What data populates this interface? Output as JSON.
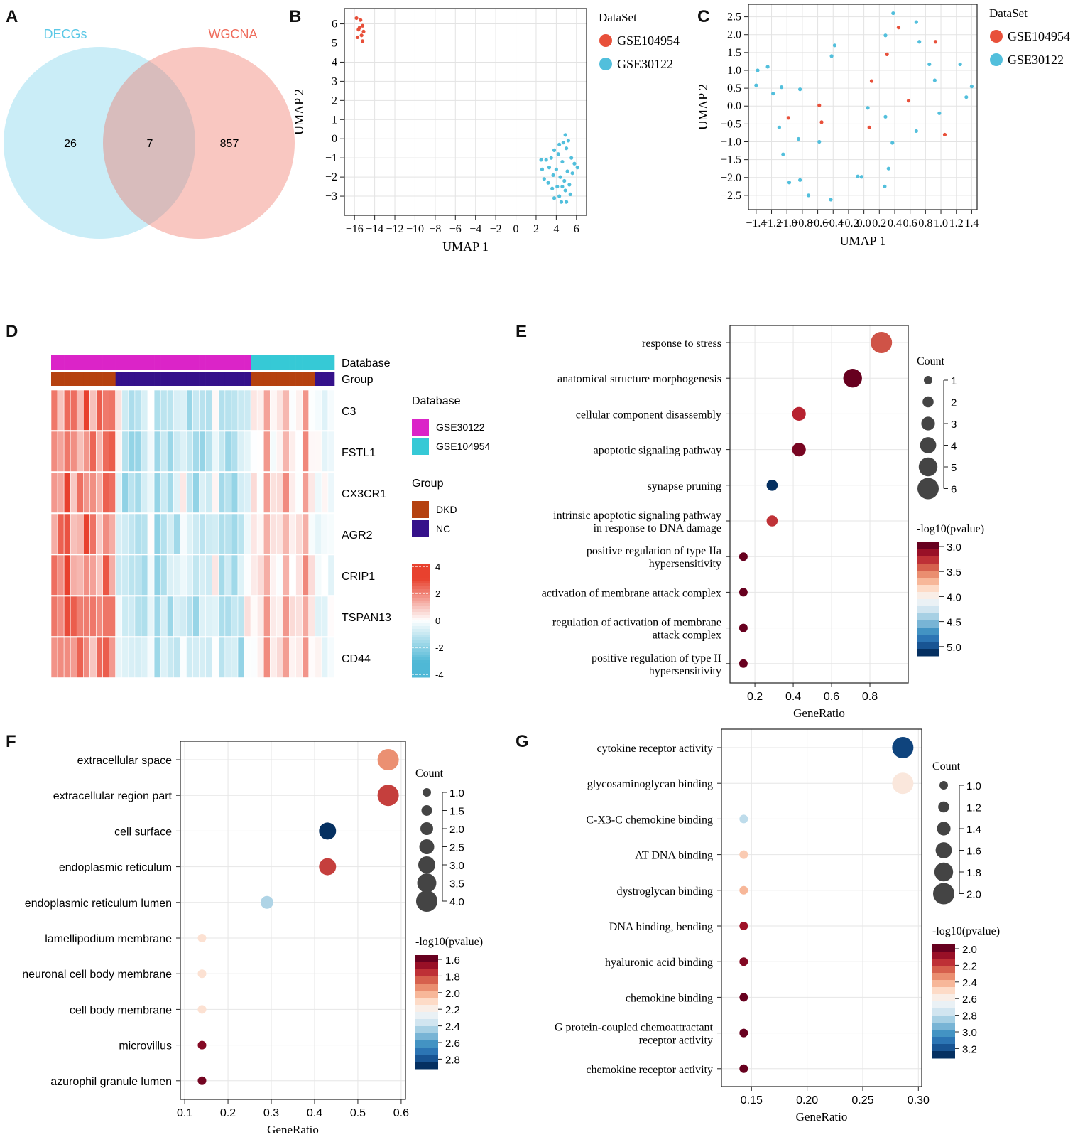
{
  "colors": {
    "decgs": "#5bc8e6",
    "wgcna": "#ef6b5b",
    "gse104954": "#e8503a",
    "gse30122": "#52bfdc",
    "dkd": "#b5410f",
    "nc": "#35118a",
    "db_gse30122": "#db24c8",
    "db_gse104954": "#36c9d6",
    "heat_low": "#4fb8d6",
    "heat_high": "#e8412e"
  },
  "panels": {
    "A": "A",
    "B": "B",
    "C": "C",
    "D": "D",
    "E": "E",
    "F": "F",
    "G": "G"
  },
  "venn": {
    "left_label": "DECGs",
    "right_label": "WGCNA",
    "left_only": "26",
    "overlap": "7",
    "right_only": "857"
  },
  "chart_data": [
    {
      "id": "B",
      "type": "scatter",
      "xlabel": "UMAP 1",
      "ylabel": "UMAP 2",
      "xlim": [
        -17,
        7
      ],
      "ylim": [
        -4,
        6.8
      ],
      "xticks": [
        -16,
        -14,
        -12,
        -10,
        -8,
        -6,
        -4,
        -2,
        0,
        2,
        4,
        6
      ],
      "xtick_labels": [
        "−16",
        "−14",
        "−12",
        "−10",
        "−8",
        "−6",
        "−4",
        "−2",
        "0",
        "2",
        "4",
        "6"
      ],
      "yticks": [
        -3,
        -2,
        -1,
        0,
        1,
        2,
        3,
        4,
        5,
        6
      ],
      "ytick_labels": [
        "−3",
        "−2",
        "−1",
        "0",
        "1",
        "2",
        "3",
        "4",
        "5",
        "6"
      ],
      "legend_title": "DataSet",
      "series": [
        {
          "name": "GSE104954",
          "points": [
            [
              -15.8,
              6.3
            ],
            [
              -15.4,
              6.2
            ],
            [
              -15.2,
              5.9
            ],
            [
              -15.6,
              5.7
            ],
            [
              -15.1,
              5.6
            ],
            [
              -15.3,
              5.4
            ],
            [
              -15.7,
              5.3
            ],
            [
              -15.2,
              5.1
            ],
            [
              -15.5,
              5.8
            ]
          ]
        },
        {
          "name": "GSE30122",
          "points": [
            [
              4.9,
              0.2
            ],
            [
              5.2,
              -0.1
            ],
            [
              4.7,
              -0.2
            ],
            [
              4.3,
              -0.3
            ],
            [
              5.0,
              -0.5
            ],
            [
              3.8,
              -0.6
            ],
            [
              4.2,
              -0.8
            ],
            [
              5.5,
              -1.0
            ],
            [
              2.5,
              -1.1
            ],
            [
              3.0,
              -1.1
            ],
            [
              3.5,
              -1.0
            ],
            [
              4.6,
              -1.2
            ],
            [
              5.8,
              -1.3
            ],
            [
              6.1,
              -1.5
            ],
            [
              2.6,
              -1.6
            ],
            [
              3.3,
              -1.5
            ],
            [
              4.0,
              -1.6
            ],
            [
              5.1,
              -1.7
            ],
            [
              3.7,
              -1.9
            ],
            [
              4.4,
              -2.0
            ],
            [
              5.6,
              -1.8
            ],
            [
              2.8,
              -2.1
            ],
            [
              3.2,
              -2.3
            ],
            [
              4.8,
              -2.2
            ],
            [
              5.3,
              -2.4
            ],
            [
              4.1,
              -2.5
            ],
            [
              3.6,
              -2.6
            ],
            [
              4.9,
              -2.7
            ],
            [
              5.4,
              -2.9
            ],
            [
              4.3,
              -3.0
            ],
            [
              3.8,
              -3.1
            ],
            [
              5.0,
              -3.3
            ],
            [
              4.5,
              -3.3
            ],
            [
              4.6,
              -2.5
            ]
          ]
        }
      ]
    },
    {
      "id": "C",
      "type": "scatter",
      "xlabel": "UMAP 1",
      "ylabel": "UMAP 2",
      "xlim": [
        -1.5,
        1.47
      ],
      "ylim": [
        -2.9,
        2.85
      ],
      "xticks": [
        -1.4,
        -1.2,
        -1.0,
        -0.8,
        -0.6,
        -0.4,
        -0.2,
        0.0,
        0.2,
        0.4,
        0.6,
        0.8,
        1.0,
        1.2,
        1.4
      ],
      "xtick_labels": [
        "−1.4",
        "−1.2",
        "−1.0",
        "−0.8",
        "−0.6",
        "−0.4",
        "−0.2",
        "0.0",
        "0.2",
        "0.4",
        "0.6",
        "0.8",
        "1.0",
        "1.2",
        "1.4"
      ],
      "yticks": [
        -2.5,
        -2.0,
        -1.5,
        -1.0,
        -0.5,
        0.0,
        0.5,
        1.0,
        1.5,
        2.0,
        2.5
      ],
      "ytick_labels": [
        "−2.5",
        "−2.0",
        "−1.5",
        "−1.0",
        "−0.5",
        "0.0",
        "0.5",
        "1.0",
        "1.5",
        "2.0",
        "2.5"
      ],
      "legend_title": "DataSet",
      "series": [
        {
          "name": "GSE104954",
          "points": [
            [
              0.45,
              2.2
            ],
            [
              0.93,
              1.8
            ],
            [
              0.3,
              1.45
            ],
            [
              0.1,
              0.7
            ],
            [
              0.58,
              0.15
            ],
            [
              -0.58,
              0.02
            ],
            [
              -0.55,
              -0.45
            ],
            [
              -0.98,
              -0.33
            ],
            [
              0.07,
              -0.6
            ],
            [
              1.05,
              -0.8
            ]
          ]
        },
        {
          "name": "GSE30122",
          "points": [
            [
              0.38,
              2.6
            ],
            [
              0.68,
              2.35
            ],
            [
              0.28,
              1.98
            ],
            [
              0.72,
              1.8
            ],
            [
              -0.38,
              1.7
            ],
            [
              -0.42,
              1.4
            ],
            [
              0.85,
              1.17
            ],
            [
              1.25,
              1.17
            ],
            [
              -1.25,
              1.1
            ],
            [
              -1.38,
              1.0
            ],
            [
              0.92,
              0.72
            ],
            [
              -1.4,
              0.58
            ],
            [
              1.4,
              0.55
            ],
            [
              -1.07,
              0.53
            ],
            [
              -0.83,
              0.47
            ],
            [
              -1.18,
              0.35
            ],
            [
              1.33,
              0.25
            ],
            [
              0.05,
              -0.05
            ],
            [
              0.28,
              -0.3
            ],
            [
              0.98,
              -0.2
            ],
            [
              -1.1,
              -0.6
            ],
            [
              0.68,
              -0.7
            ],
            [
              -0.85,
              -0.92
            ],
            [
              -0.58,
              -1.0
            ],
            [
              0.37,
              -1.03
            ],
            [
              -1.05,
              -1.35
            ],
            [
              0.32,
              -1.75
            ],
            [
              -0.08,
              -1.97
            ],
            [
              -0.03,
              -1.98
            ],
            [
              -0.83,
              -2.07
            ],
            [
              -0.97,
              -2.14
            ],
            [
              0.27,
              -2.25
            ],
            [
              -0.72,
              -2.5
            ],
            [
              -0.43,
              -2.62
            ]
          ]
        }
      ]
    },
    {
      "id": "D",
      "type": "heatmap",
      "annotation_labels": [
        "Database",
        "Group"
      ],
      "rows": [
        "C3",
        "FSTL1",
        "CX3CR1",
        "AGR2",
        "CRIP1",
        "TSPAN13",
        "CD44"
      ],
      "n_columns": 44,
      "database_legend_title": "Database",
      "database_legend": [
        "GSE30122",
        "GSE104954"
      ],
      "group_legend_title": "Group",
      "group_legend": [
        "DKD",
        "NC"
      ],
      "colorbar_ticks": [
        "4",
        "2",
        "0",
        "-2",
        "-4"
      ],
      "value_range": [
        -4,
        4
      ]
    },
    {
      "id": "E",
      "type": "scatter",
      "xlabel": "GeneRatio",
      "xlim": [
        0.07,
        1.0
      ],
      "xticks": [
        0.2,
        0.4,
        0.6,
        0.8
      ],
      "xtick_labels": [
        "0.2",
        "0.4",
        "0.6",
        "0.8"
      ],
      "terms": [
        {
          "label": [
            "response to stress"
          ],
          "ratio": 0.86,
          "count": 6,
          "p": 3.4
        },
        {
          "label": [
            "anatomical structure morphogenesis"
          ],
          "ratio": 0.71,
          "count": 5,
          "p": 3.0
        },
        {
          "label": [
            "cellular component disassembly"
          ],
          "ratio": 0.43,
          "count": 3,
          "p": 3.25
        },
        {
          "label": [
            "apoptotic signaling pathway"
          ],
          "ratio": 0.43,
          "count": 3,
          "p": 3.05
        },
        {
          "label": [
            "synapse pruning"
          ],
          "ratio": 0.29,
          "count": 2,
          "p": 5.2
        },
        {
          "label": [
            "intrinsic apoptotic signaling pathway",
            "in response to DNA damage"
          ],
          "ratio": 0.29,
          "count": 2,
          "p": 3.3
        },
        {
          "label": [
            "positive regulation of type IIa",
            "hypersensitivity"
          ],
          "ratio": 0.14,
          "count": 1,
          "p": 3.0
        },
        {
          "label": [
            "activation of membrane attack complex"
          ],
          "ratio": 0.14,
          "count": 1,
          "p": 3.0
        },
        {
          "label": [
            "regulation of activation of membrane",
            "attack complex"
          ],
          "ratio": 0.14,
          "count": 1,
          "p": 3.0
        },
        {
          "label": [
            "positive regulation of type II",
            "hypersensitivity"
          ],
          "ratio": 0.14,
          "count": 1,
          "p": 3.0
        }
      ],
      "size_legend_title": "Count",
      "size_legend": [
        1,
        2,
        3,
        4,
        5,
        6
      ],
      "size_legend_labels": [
        "1",
        "2",
        "3",
        "4",
        "5",
        "6"
      ],
      "color_legend_title": "-log10(pvalue)",
      "color_ticks": [
        "3.0",
        "3.5",
        "4.0",
        "4.5",
        "5.0"
      ],
      "color_range": [
        3.0,
        5.2
      ]
    },
    {
      "id": "F",
      "type": "scatter",
      "xlabel": "GeneRatio",
      "xlim": [
        0.09,
        0.61
      ],
      "xticks": [
        0.1,
        0.2,
        0.3,
        0.4,
        0.5,
        0.6
      ],
      "xtick_labels": [
        "0.1",
        "0.2",
        "0.3",
        "0.4",
        "0.5",
        "0.6"
      ],
      "terms": [
        {
          "label": [
            "extracellular space"
          ],
          "ratio": 0.57,
          "count": 4,
          "p": 1.85
        },
        {
          "label": [
            "extracellular region part"
          ],
          "ratio": 0.57,
          "count": 4,
          "p": 1.7
        },
        {
          "label": [
            "cell surface"
          ],
          "ratio": 0.43,
          "count": 3,
          "p": 2.8
        },
        {
          "label": [
            "endoplasmic reticulum"
          ],
          "ratio": 0.43,
          "count": 3,
          "p": 1.7
        },
        {
          "label": [
            "endoplasmic reticulum lumen"
          ],
          "ratio": 0.29,
          "count": 2,
          "p": 2.35
        },
        {
          "label": [
            "lamellipodium membrane"
          ],
          "ratio": 0.14,
          "count": 1,
          "p": 2.05
        },
        {
          "label": [
            "neuronal cell body membrane"
          ],
          "ratio": 0.14,
          "count": 1,
          "p": 2.05
        },
        {
          "label": [
            "cell body membrane"
          ],
          "ratio": 0.14,
          "count": 1,
          "p": 2.05
        },
        {
          "label": [
            "microvillus"
          ],
          "ratio": 0.14,
          "count": 1,
          "p": 1.55
        },
        {
          "label": [
            "azurophil granule lumen"
          ],
          "ratio": 0.14,
          "count": 1,
          "p": 1.52
        }
      ],
      "size_legend_title": "Count",
      "size_legend": [
        1.0,
        1.5,
        2.0,
        2.5,
        3.0,
        3.5,
        4.0
      ],
      "size_legend_labels": [
        "1.0",
        "1.5",
        "2.0",
        "2.5",
        "3.0",
        "3.5",
        "4.0"
      ],
      "color_legend_title": "-log10(pvalue)",
      "color_ticks": [
        "1.6",
        "1.8",
        "2.0",
        "2.2",
        "2.4",
        "2.6",
        "2.8"
      ],
      "color_range": [
        1.5,
        2.8
      ]
    },
    {
      "id": "G",
      "type": "scatter",
      "xlabel": "GeneRatio",
      "xlim": [
        0.123,
        0.303
      ],
      "xticks": [
        0.15,
        0.2,
        0.25,
        0.3
      ],
      "xtick_labels": [
        "0.15",
        "0.20",
        "0.25",
        "0.30"
      ],
      "terms": [
        {
          "label": [
            "cytokine receptor activity"
          ],
          "ratio": 0.286,
          "count": 2,
          "p": 3.3
        },
        {
          "label": [
            "glycosaminoglycan binding"
          ],
          "ratio": 0.286,
          "count": 2,
          "p": 2.6
        },
        {
          "label": [
            "C-X3-C chemokine binding"
          ],
          "ratio": 0.143,
          "count": 1,
          "p": 2.85
        },
        {
          "label": [
            "AT DNA binding"
          ],
          "ratio": 0.143,
          "count": 1,
          "p": 2.5
        },
        {
          "label": [
            "dystroglycan binding"
          ],
          "ratio": 0.143,
          "count": 1,
          "p": 2.45
        },
        {
          "label": [
            "DNA binding, bending"
          ],
          "ratio": 0.143,
          "count": 1,
          "p": 2.1
        },
        {
          "label": [
            "hyaluronic acid binding"
          ],
          "ratio": 0.143,
          "count": 1,
          "p": 2.05
        },
        {
          "label": [
            "chemokine binding"
          ],
          "ratio": 0.143,
          "count": 1,
          "p": 2.0
        },
        {
          "label": [
            "G protein-coupled chemoattractant",
            "receptor activity"
          ],
          "ratio": 0.143,
          "count": 1,
          "p": 2.0
        },
        {
          "label": [
            "chemokine receptor activity"
          ],
          "ratio": 0.143,
          "count": 1,
          "p": 2.0
        }
      ],
      "size_legend_title": "Count",
      "size_legend": [
        1.0,
        1.2,
        1.4,
        1.6,
        1.8,
        2.0
      ],
      "size_legend_labels": [
        "1.0",
        "1.2",
        "1.4",
        "1.6",
        "1.8",
        "2.0"
      ],
      "color_legend_title": "-log10(pvalue)",
      "color_ticks": [
        "2.0",
        "2.2",
        "2.4",
        "2.6",
        "2.8",
        "3.0",
        "3.2"
      ],
      "color_range": [
        2.0,
        3.35
      ]
    }
  ]
}
